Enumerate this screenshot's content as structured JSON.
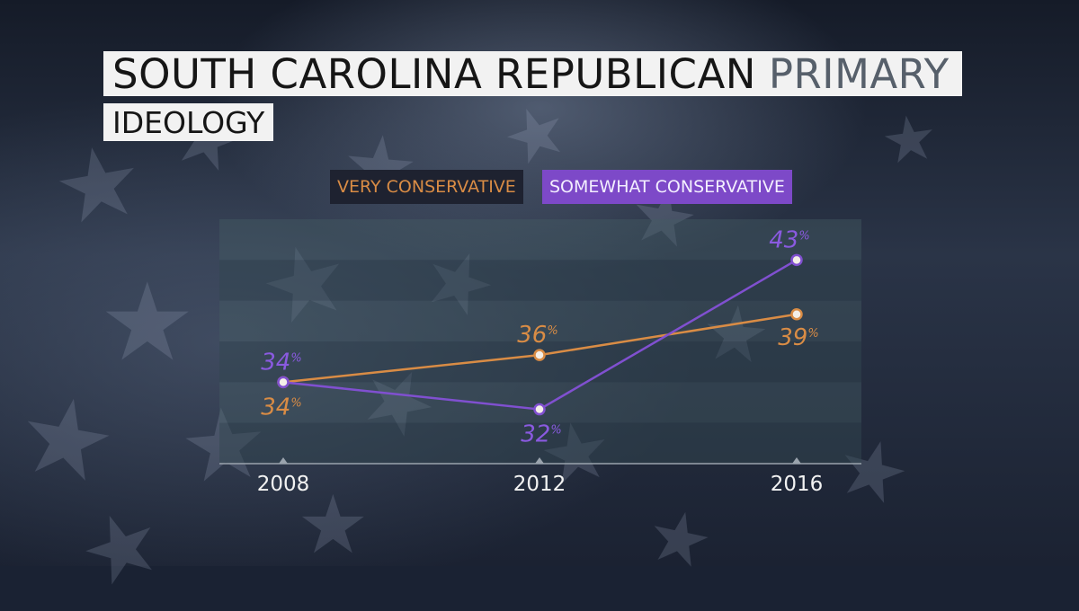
{
  "header": {
    "title_main": "SOUTH CAROLINA REPUBLICAN",
    "title_accent": "PRIMARY",
    "subtitle": "IDEOLOGY"
  },
  "colors": {
    "very_conservative": "#d98c45",
    "somewhat_conservative": "#8050d0",
    "somewhat_legend_bg": "#7d49c8",
    "title_bg": "#f2f2f2"
  },
  "background": {
    "decoration": "star-icon"
  },
  "chart_data": {
    "type": "line",
    "title": "IDEOLOGY",
    "x": [
      "2008",
      "2012",
      "2016"
    ],
    "series": [
      {
        "name": "VERY CONSERVATIVE",
        "values": [
          34,
          36,
          39
        ],
        "labels": [
          "34%",
          "36%",
          "39%"
        ]
      },
      {
        "name": "SOMEWHAT CONSERVATIVE",
        "values": [
          34,
          32,
          43
        ],
        "labels": [
          "34%",
          "32%",
          "43%"
        ]
      }
    ],
    "ylim": [
      28,
      46
    ],
    "legend": "top",
    "grid": "horizontal bands"
  }
}
